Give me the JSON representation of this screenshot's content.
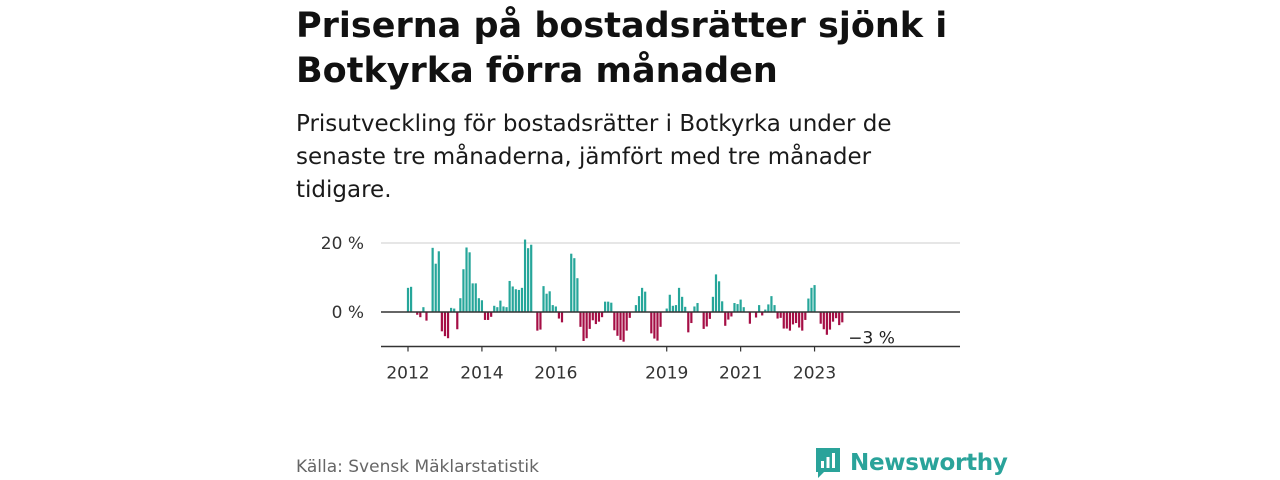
{
  "title": "Priserna på bostadsrätter sjönk i Botkyrka förra månaden",
  "subtitle": "Prisutveckling för bostadsrätter i Botkyrka under de senaste tre månaderna, jämfört med tre månader tidigare.",
  "source": "Källa: Svensk Mäklarstatistik",
  "brand": "Newsworthy",
  "colors": {
    "positive": "#26a69a",
    "negative": "#a50e45",
    "zero_line": "#333333",
    "grid": "#dddddd",
    "brand": "#2aa39a"
  },
  "chart_data": {
    "type": "bar",
    "title": "",
    "xlabel": "",
    "ylabel": "",
    "ylim": [
      -10,
      21
    ],
    "y_ticks": [
      {
        "value": 20,
        "label": "20 %"
      },
      {
        "value": 0,
        "label": "0 %"
      }
    ],
    "x_ticks": [
      {
        "year": 2012,
        "label": "2012"
      },
      {
        "year": 2014,
        "label": "2014"
      },
      {
        "year": 2016,
        "label": "2016"
      },
      {
        "year": 2019,
        "label": "2019"
      },
      {
        "year": 2021,
        "label": "2021"
      },
      {
        "year": 2023,
        "label": "2023"
      }
    ],
    "start": "2012-01",
    "values": [
      7,
      7.3,
      0,
      -0.8,
      -1.5,
      1.4,
      -2.5,
      0,
      18.6,
      14,
      17.6,
      -5.6,
      -7,
      -7.6,
      1.2,
      1,
      -5,
      4,
      12.4,
      18.7,
      17.3,
      8.3,
      8.3,
      4,
      3.4,
      -2.3,
      -2.3,
      -1.4,
      1.8,
      1.4,
      3.3,
      1.6,
      1.4,
      9,
      7.4,
      6.6,
      6.4,
      7,
      21,
      18.5,
      19.5,
      0,
      -5.4,
      -5.1,
      7.5,
      5.3,
      6,
      2,
      1.6,
      -1.9,
      -3,
      0,
      0,
      16.9,
      15.6,
      9.8,
      -4.3,
      -8.4,
      -7.6,
      -4.9,
      -2.4,
      -3.5,
      -2.8,
      -1.5,
      3,
      3,
      2.7,
      -5.3,
      -6.9,
      -8.1,
      -8.6,
      -5.4,
      -1.7,
      0,
      2,
      4.6,
      7,
      5.9,
      0,
      -6.2,
      -7.7,
      -8.3,
      -4.3,
      0,
      1,
      5,
      1.8,
      2,
      7,
      4.4,
      1.5,
      -5.9,
      -3.2,
      1.6,
      2.6,
      0,
      -4.9,
      -4.2,
      -2,
      4.4,
      10.9,
      8.9,
      3.1,
      -4,
      -2.2,
      -1.3,
      2.6,
      2.3,
      3.6,
      1.4,
      0,
      -3.4,
      0,
      -1.6,
      2,
      -1,
      0.7,
      2.2,
      4.6,
      2,
      -1.9,
      -1.7,
      -4.8,
      -4.8,
      -5.4,
      -3.6,
      -3.2,
      -4.5,
      -5.4,
      -2.3,
      3.9,
      7,
      7.8,
      0,
      -3.4,
      -5,
      -6.6,
      -5.1,
      -2.8,
      -1.8,
      -3.8,
      -3
    ],
    "end_label": "−3 %"
  }
}
